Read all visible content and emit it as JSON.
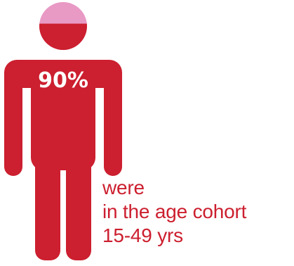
{
  "chart_data": {
    "type": "pictogram",
    "value_label": "90%",
    "value": 90,
    "max": 100,
    "caption_lines": [
      "were",
      "in the age cohort",
      "15-49 yrs"
    ]
  },
  "colors": {
    "fill": "#cc1f2f",
    "remainder": "#e899c4",
    "value_text": "#ffffff"
  },
  "icons": {
    "figure": "person-icon"
  }
}
